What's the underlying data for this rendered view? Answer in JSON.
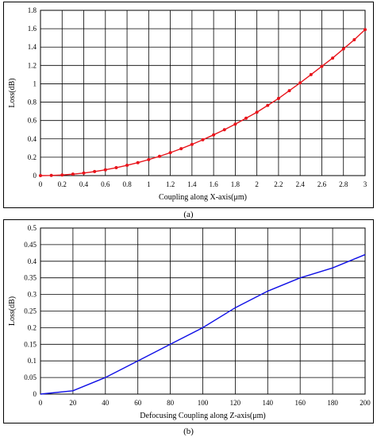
{
  "captions": {
    "a": "(a)",
    "b": "(b)"
  },
  "chart_data": [
    {
      "type": "line",
      "title": "",
      "xlabel": "Coupling along X-axis(μm)",
      "ylabel": "Loss(dB)",
      "xlim": [
        0,
        3
      ],
      "ylim": [
        0,
        1.8
      ],
      "xticks": [
        "0",
        "0.2",
        "0.4",
        "0.6",
        "0.8",
        "1",
        "1.2",
        "1.4",
        "1.6",
        "1.8",
        "2",
        "2.2",
        "2.4",
        "2.6",
        "2.8",
        "3"
      ],
      "yticks": [
        "0",
        "0.2",
        "0.4",
        "0.6",
        "0.8",
        "1",
        "1.2",
        "1.4",
        "1.6",
        "1.8"
      ],
      "grid": true,
      "color": "#e8141b",
      "markers": true,
      "series": [
        {
          "x": [
            0,
            0.1,
            0.2,
            0.3,
            0.4,
            0.5,
            0.6,
            0.7,
            0.8,
            0.9,
            1.0,
            1.1,
            1.2,
            1.3,
            1.4,
            1.5,
            1.6,
            1.7,
            1.8,
            1.9,
            2.0,
            2.1,
            2.2,
            2.3,
            2.4,
            2.5,
            2.6,
            2.7,
            2.8,
            2.9,
            3.0
          ],
          "values": [
            0,
            0.002,
            0.007,
            0.016,
            0.028,
            0.044,
            0.063,
            0.086,
            0.112,
            0.141,
            0.174,
            0.21,
            0.25,
            0.293,
            0.34,
            0.39,
            0.444,
            0.5,
            0.56,
            0.625,
            0.69,
            0.765,
            0.84,
            0.925,
            1.01,
            1.1,
            1.19,
            1.28,
            1.38,
            1.48,
            1.59
          ]
        }
      ]
    },
    {
      "type": "line",
      "title": "",
      "xlabel": "Defocusing Coupling along Z-axis(μm)",
      "ylabel": "Loss(dB)",
      "xlim": [
        0,
        200
      ],
      "ylim": [
        0,
        0.5
      ],
      "xticks": [
        "0",
        "20",
        "40",
        "60",
        "80",
        "100",
        "120",
        "140",
        "160",
        "180",
        "200"
      ],
      "yticks": [
        "0",
        "0.05",
        "0.1",
        "0.15",
        "0.2",
        "0.25",
        "0.3",
        "0.35",
        "0.4",
        "0.45",
        "0.5"
      ],
      "grid": true,
      "color": "#1010e6",
      "markers": false,
      "series": [
        {
          "x": [
            0,
            20,
            40,
            60,
            80,
            100,
            120,
            140,
            160,
            180,
            200
          ],
          "values": [
            0,
            0.01,
            0.05,
            0.1,
            0.15,
            0.2,
            0.26,
            0.31,
            0.35,
            0.38,
            0.42
          ]
        }
      ]
    }
  ]
}
